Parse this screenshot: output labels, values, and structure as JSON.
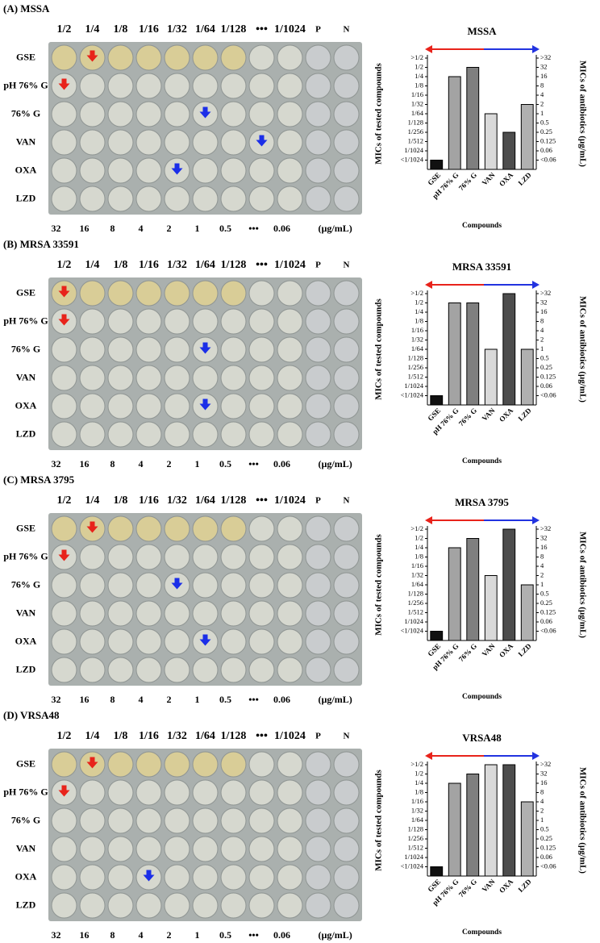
{
  "plate": {
    "columns": [
      "1/2",
      "1/4",
      "1/8",
      "1/16",
      "1/32",
      "1/64",
      "1/128",
      "•••",
      "1/1024",
      "P",
      "N"
    ],
    "rows": [
      "GSE",
      "pH 76% G",
      "76% G",
      "VAN",
      "OXA",
      "LZD"
    ],
    "concentrations": [
      "32",
      "16",
      "8",
      "4",
      "2",
      "1",
      "0.5",
      "•••",
      "0.06"
    ],
    "unit": "(µg/mL)"
  },
  "panels": [
    {
      "label": "(A) MSSA"
    },
    {
      "label": "(B) MRSA 33591"
    },
    {
      "label": "(C) MRSA 3795"
    },
    {
      "label": "(D) VRSA48"
    }
  ],
  "chart_data": [
    {
      "type": "bar",
      "title": "MSSA",
      "xlabel": "Compounds",
      "ylabel": "MICs of tested compounds",
      "y2label": "MICs of antibiotics (µg/mL)",
      "categories": [
        "GSE",
        "pH 76% G",
        "76% G",
        "VAN",
        "OXA",
        "LZD"
      ],
      "colors": [
        "#111111",
        "#a3a3a3",
        "#7f7f7f",
        "#d9d9d9",
        "#4d4d4d",
        "#b0b0b0"
      ],
      "series": [
        {
          "values": [
            0.00048828125,
            0.25,
            0.5,
            null,
            null,
            null
          ]
        },
        {
          "axis": "y2",
          "values": [
            null,
            null,
            null,
            1,
            0.25,
            2
          ]
        }
      ],
      "yscale": "log",
      "ylim": [
        0.000244140625,
        1
      ],
      "yticks": [
        {
          "value": 0.00048828125,
          "label": "<1/1024"
        },
        {
          "value": 0.0009765625,
          "label": "1/1024"
        },
        {
          "value": 0.001953125,
          "label": "1/512"
        },
        {
          "value": 0.00390625,
          "label": "1/256"
        },
        {
          "value": 0.0078125,
          "label": "1/128"
        },
        {
          "value": 0.015625,
          "label": "1/64"
        },
        {
          "value": 0.03125,
          "label": "1/32"
        },
        {
          "value": 0.0625,
          "label": "1/16"
        },
        {
          "value": 0.125,
          "label": "1/8"
        },
        {
          "value": 0.25,
          "label": "1/4"
        },
        {
          "value": 0.5,
          "label": "1/2"
        },
        {
          "value": 1,
          "label": ">1/2"
        }
      ],
      "y2lim": [
        0.015625,
        64
      ],
      "y2ticks": [
        {
          "value": 0.03125,
          "label": "<0.06"
        },
        {
          "value": 0.0625,
          "label": "0.06"
        },
        0.125,
        0.25,
        0.5,
        1,
        2,
        4,
        8,
        16,
        32,
        {
          "value": 64,
          "label": ">32"
        }
      ]
    },
    {
      "type": "bar",
      "title": "MRSA 33591",
      "xlabel": "Compounds",
      "ylabel": "MICs of tested compounds",
      "y2label": "MICs of antibiotics (µg/mL)",
      "categories": [
        "GSE",
        "pH 76% G",
        "76% G",
        "VAN",
        "OXA",
        "LZD"
      ],
      "colors": [
        "#111111",
        "#a3a3a3",
        "#7f7f7f",
        "#d9d9d9",
        "#4d4d4d",
        "#b0b0b0"
      ],
      "series": [
        {
          "values": [
            0.00048828125,
            0.5,
            0.5,
            null,
            null,
            null
          ]
        },
        {
          "axis": "y2",
          "values": [
            null,
            null,
            null,
            1,
            64,
            1
          ]
        }
      ],
      "yscale": "log",
      "ylim": [
        0.000244140625,
        1
      ],
      "yticks": [
        {
          "value": 0.00048828125,
          "label": "<1/1024"
        },
        {
          "value": 0.0009765625,
          "label": "1/1024"
        },
        {
          "value": 0.001953125,
          "label": "1/512"
        },
        {
          "value": 0.00390625,
          "label": "1/256"
        },
        {
          "value": 0.0078125,
          "label": "1/128"
        },
        {
          "value": 0.015625,
          "label": "1/64"
        },
        {
          "value": 0.03125,
          "label": "1/32"
        },
        {
          "value": 0.0625,
          "label": "1/16"
        },
        {
          "value": 0.125,
          "label": "1/8"
        },
        {
          "value": 0.25,
          "label": "1/4"
        },
        {
          "value": 0.5,
          "label": "1/2"
        },
        {
          "value": 1,
          "label": ">1/2"
        }
      ],
      "y2lim": [
        0.015625,
        64
      ],
      "y2ticks": [
        {
          "value": 0.03125,
          "label": "<0.06"
        },
        {
          "value": 0.0625,
          "label": "0.06"
        },
        0.125,
        0.25,
        0.5,
        1,
        2,
        4,
        8,
        16,
        32,
        {
          "value": 64,
          "label": ">32"
        }
      ]
    },
    {
      "type": "bar",
      "title": "MRSA 3795",
      "xlabel": "Compounds",
      "ylabel": "MICs of tested compounds",
      "y2label": "MICs of antibiotics (µg/mL)",
      "categories": [
        "GSE",
        "pH 76% G",
        "76% G",
        "VAN",
        "OXA",
        "LZD"
      ],
      "colors": [
        "#111111",
        "#a3a3a3",
        "#7f7f7f",
        "#d9d9d9",
        "#4d4d4d",
        "#b0b0b0"
      ],
      "series": [
        {
          "values": [
            0.00048828125,
            0.25,
            0.5,
            null,
            null,
            null
          ]
        },
        {
          "axis": "y2",
          "values": [
            null,
            null,
            null,
            2,
            64,
            1
          ]
        }
      ],
      "yscale": "log",
      "ylim": [
        0.000244140625,
        1
      ],
      "yticks": [
        {
          "value": 0.00048828125,
          "label": "<1/1024"
        },
        {
          "value": 0.0009765625,
          "label": "1/1024"
        },
        {
          "value": 0.001953125,
          "label": "1/512"
        },
        {
          "value": 0.00390625,
          "label": "1/256"
        },
        {
          "value": 0.0078125,
          "label": "1/128"
        },
        {
          "value": 0.015625,
          "label": "1/64"
        },
        {
          "value": 0.03125,
          "label": "1/32"
        },
        {
          "value": 0.0625,
          "label": "1/16"
        },
        {
          "value": 0.125,
          "label": "1/8"
        },
        {
          "value": 0.25,
          "label": "1/4"
        },
        {
          "value": 0.5,
          "label": "1/2"
        },
        {
          "value": 1,
          "label": ">1/2"
        }
      ],
      "y2lim": [
        0.015625,
        64
      ],
      "y2ticks": [
        {
          "value": 0.03125,
          "label": "<0.06"
        },
        {
          "value": 0.0625,
          "label": "0.06"
        },
        0.125,
        0.25,
        0.5,
        1,
        2,
        4,
        8,
        16,
        32,
        {
          "value": 64,
          "label": ">32"
        }
      ]
    },
    {
      "type": "bar",
      "title": "VRSA48",
      "xlabel": "Compounds",
      "ylabel": "MICs of tested compounds",
      "y2label": "MICs of antibiotics (µg/mL)",
      "categories": [
        "GSE",
        "pH 76% G",
        "76% G",
        "VAN",
        "OXA",
        "LZD"
      ],
      "colors": [
        "#111111",
        "#a3a3a3",
        "#7f7f7f",
        "#d9d9d9",
        "#4d4d4d",
        "#b0b0b0"
      ],
      "series": [
        {
          "values": [
            0.00048828125,
            0.25,
            0.5,
            null,
            null,
            null
          ]
        },
        {
          "axis": "y2",
          "values": [
            null,
            null,
            null,
            64,
            64,
            4
          ]
        }
      ],
      "yscale": "log",
      "ylim": [
        0.000244140625,
        1
      ],
      "yticks": [
        {
          "value": 0.00048828125,
          "label": "<1/1024"
        },
        {
          "value": 0.0009765625,
          "label": "1/1024"
        },
        {
          "value": 0.001953125,
          "label": "1/512"
        },
        {
          "value": 0.00390625,
          "label": "1/256"
        },
        {
          "value": 0.0078125,
          "label": "1/128"
        },
        {
          "value": 0.015625,
          "label": "1/64"
        },
        {
          "value": 0.03125,
          "label": "1/32"
        },
        {
          "value": 0.0625,
          "label": "1/16"
        },
        {
          "value": 0.125,
          "label": "1/8"
        },
        {
          "value": 0.25,
          "label": "1/4"
        },
        {
          "value": 0.5,
          "label": "1/2"
        },
        {
          "value": 1,
          "label": ">1/2"
        }
      ],
      "y2lim": [
        0.015625,
        64
      ],
      "y2ticks": [
        {
          "value": 0.03125,
          "label": "<0.06"
        },
        {
          "value": 0.0625,
          "label": "0.06"
        },
        0.125,
        0.25,
        0.5,
        1,
        2,
        4,
        8,
        16,
        32,
        {
          "value": 64,
          "label": ">32"
        }
      ]
    }
  ]
}
